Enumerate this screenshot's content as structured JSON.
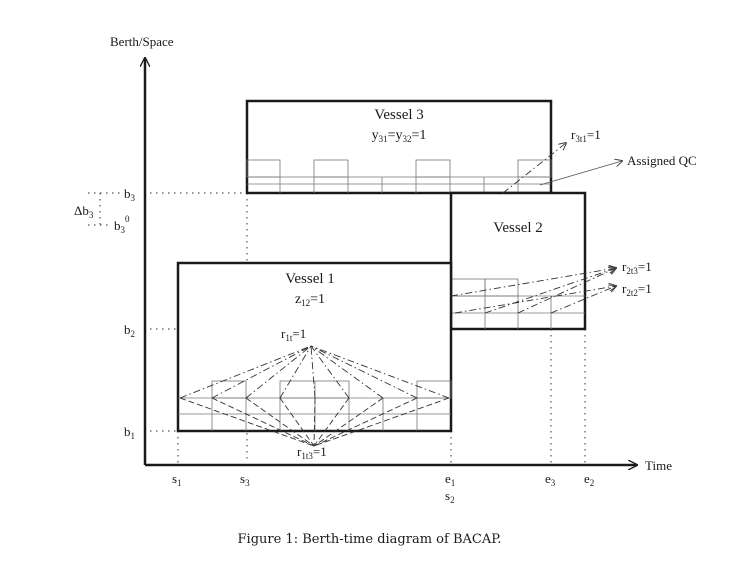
{
  "axes": {
    "y_label": "Berth/Space",
    "x_label": "Time",
    "y_ticks": [
      {
        "main": "b",
        "sub": "3",
        "sup": ""
      },
      {
        "main": "b",
        "sub": "3",
        "sup": "0"
      },
      {
        "main": "b",
        "sub": "2",
        "sup": ""
      },
      {
        "main": "b",
        "sub": "1",
        "sup": ""
      }
    ],
    "delta": {
      "main": "Δb",
      "sub": "3"
    },
    "x_ticks": [
      {
        "main": "s",
        "sub": "1"
      },
      {
        "main": "s",
        "sub": "3"
      },
      {
        "main": "e",
        "sub": "1"
      },
      {
        "main": "s",
        "sub": "2"
      },
      {
        "main": "e",
        "sub": "3"
      },
      {
        "main": "e",
        "sub": "2"
      }
    ]
  },
  "vessels": [
    {
      "title": "Vessel 1",
      "var": "z",
      "sub": "12",
      "rhs": "=1"
    },
    {
      "title": "Vessel 2"
    },
    {
      "title": "Vessel 3",
      "var1": "y",
      "sub1": "31",
      "eq": "=y",
      "sub2": "32",
      "rhs": "=1"
    }
  ],
  "annotations": {
    "r1t": {
      "main": "r",
      "sub": "1t",
      "rhs": "=1"
    },
    "r1t3": {
      "main": "r",
      "sub": "1t3",
      "rhs": "=1"
    },
    "r2t3": {
      "main": "r",
      "sub": "2t3",
      "rhs": "=1"
    },
    "r2t2": {
      "main": "r",
      "sub": "2t2",
      "rhs": "=1"
    },
    "r3t1": {
      "main": "r",
      "sub": "3t1",
      "rhs": "=1"
    },
    "assigned_qc": "Assigned QC"
  },
  "caption": "Figure 1: Berth-time diagram of BACAP."
}
